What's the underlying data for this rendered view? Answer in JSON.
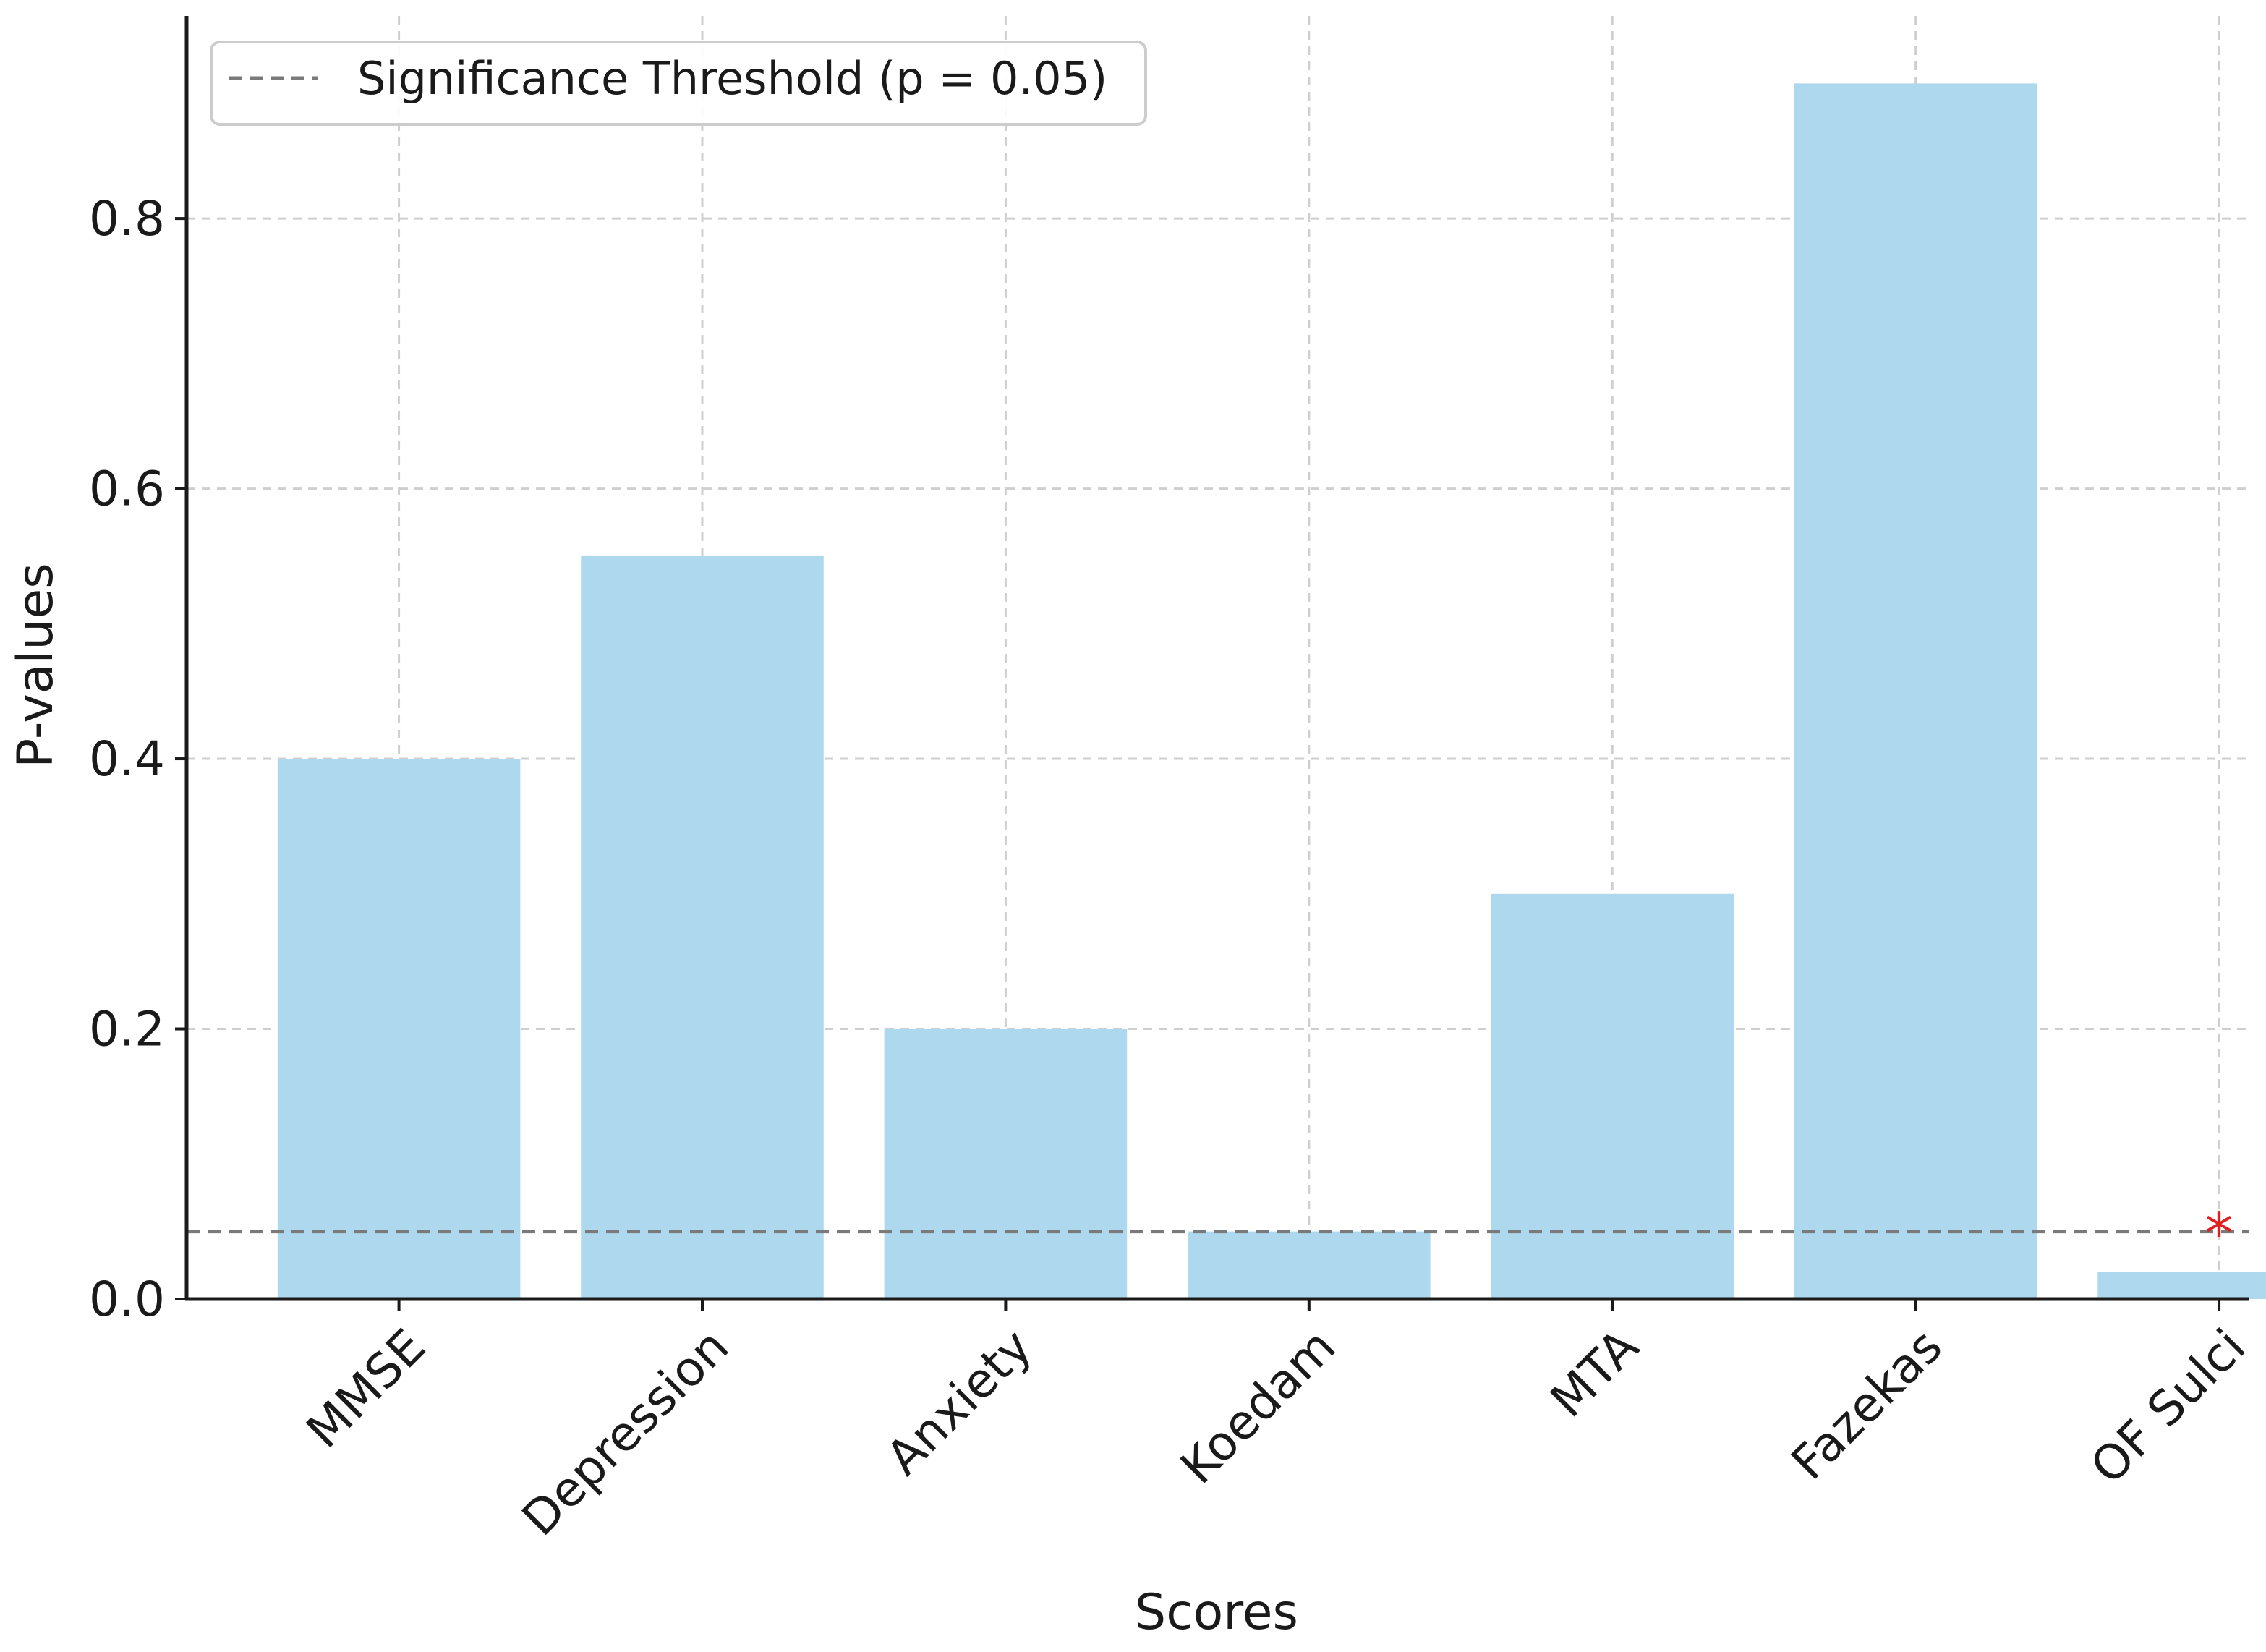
{
  "chart_data": {
    "type": "bar",
    "title": "",
    "xlabel": "Scores",
    "ylabel": "P-values",
    "categories": [
      "MMSE",
      "Depression",
      "Anxiety",
      "Koedam",
      "MTA",
      "Fazekas",
      "OF Sulci"
    ],
    "values": [
      0.4,
      0.55,
      0.2,
      0.05,
      0.3,
      0.9,
      0.02
    ],
    "ylim": [
      0.0,
      0.95
    ],
    "yticks": [
      0.0,
      0.2,
      0.4,
      0.6,
      0.8
    ],
    "ytick_labels": [
      "0.0",
      "0.2",
      "0.4",
      "0.6",
      "0.8"
    ],
    "bar_color": "#add8ee",
    "grid": true,
    "threshold": {
      "value": 0.05,
      "label": "Significance Threshold (p = 0.05)",
      "color": "#7a7a7a",
      "style": "dashed"
    },
    "annotations": [
      {
        "category": "OF Sulci",
        "text": "*",
        "color": "#e02020",
        "value": 0.05
      }
    ],
    "legend_position": "top-left"
  }
}
